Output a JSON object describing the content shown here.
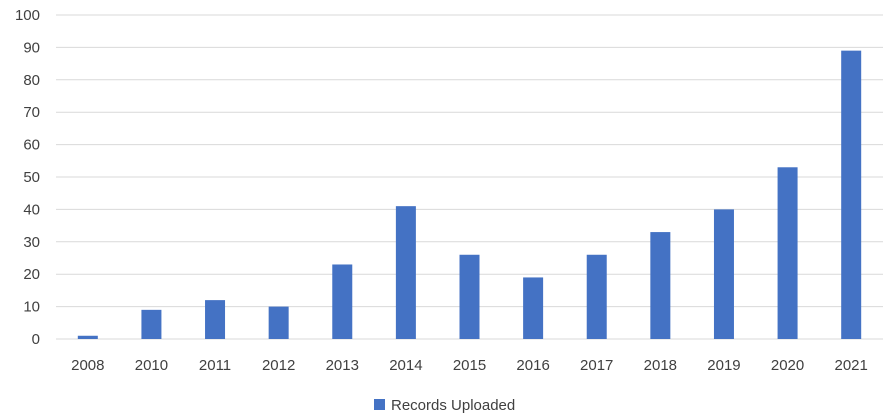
{
  "chart_data": {
    "type": "bar",
    "categories": [
      "2008",
      "2010",
      "2011",
      "2012",
      "2013",
      "2014",
      "2015",
      "2016",
      "2017",
      "2018",
      "2019",
      "2020",
      "2021"
    ],
    "series": [
      {
        "name": "Records Uploaded",
        "values": [
          1,
          9,
          12,
          10,
          23,
          41,
          26,
          19,
          26,
          33,
          40,
          53,
          89
        ],
        "color": "#4472C4"
      }
    ],
    "ylim": [
      0,
      100
    ],
    "y_ticks": [
      "0",
      "10",
      "20",
      "30",
      "40",
      "50",
      "60",
      "70",
      "80",
      "90",
      "100"
    ],
    "grid": true,
    "legend": "bottom-center",
    "title": "",
    "xlabel": "",
    "ylabel": ""
  }
}
